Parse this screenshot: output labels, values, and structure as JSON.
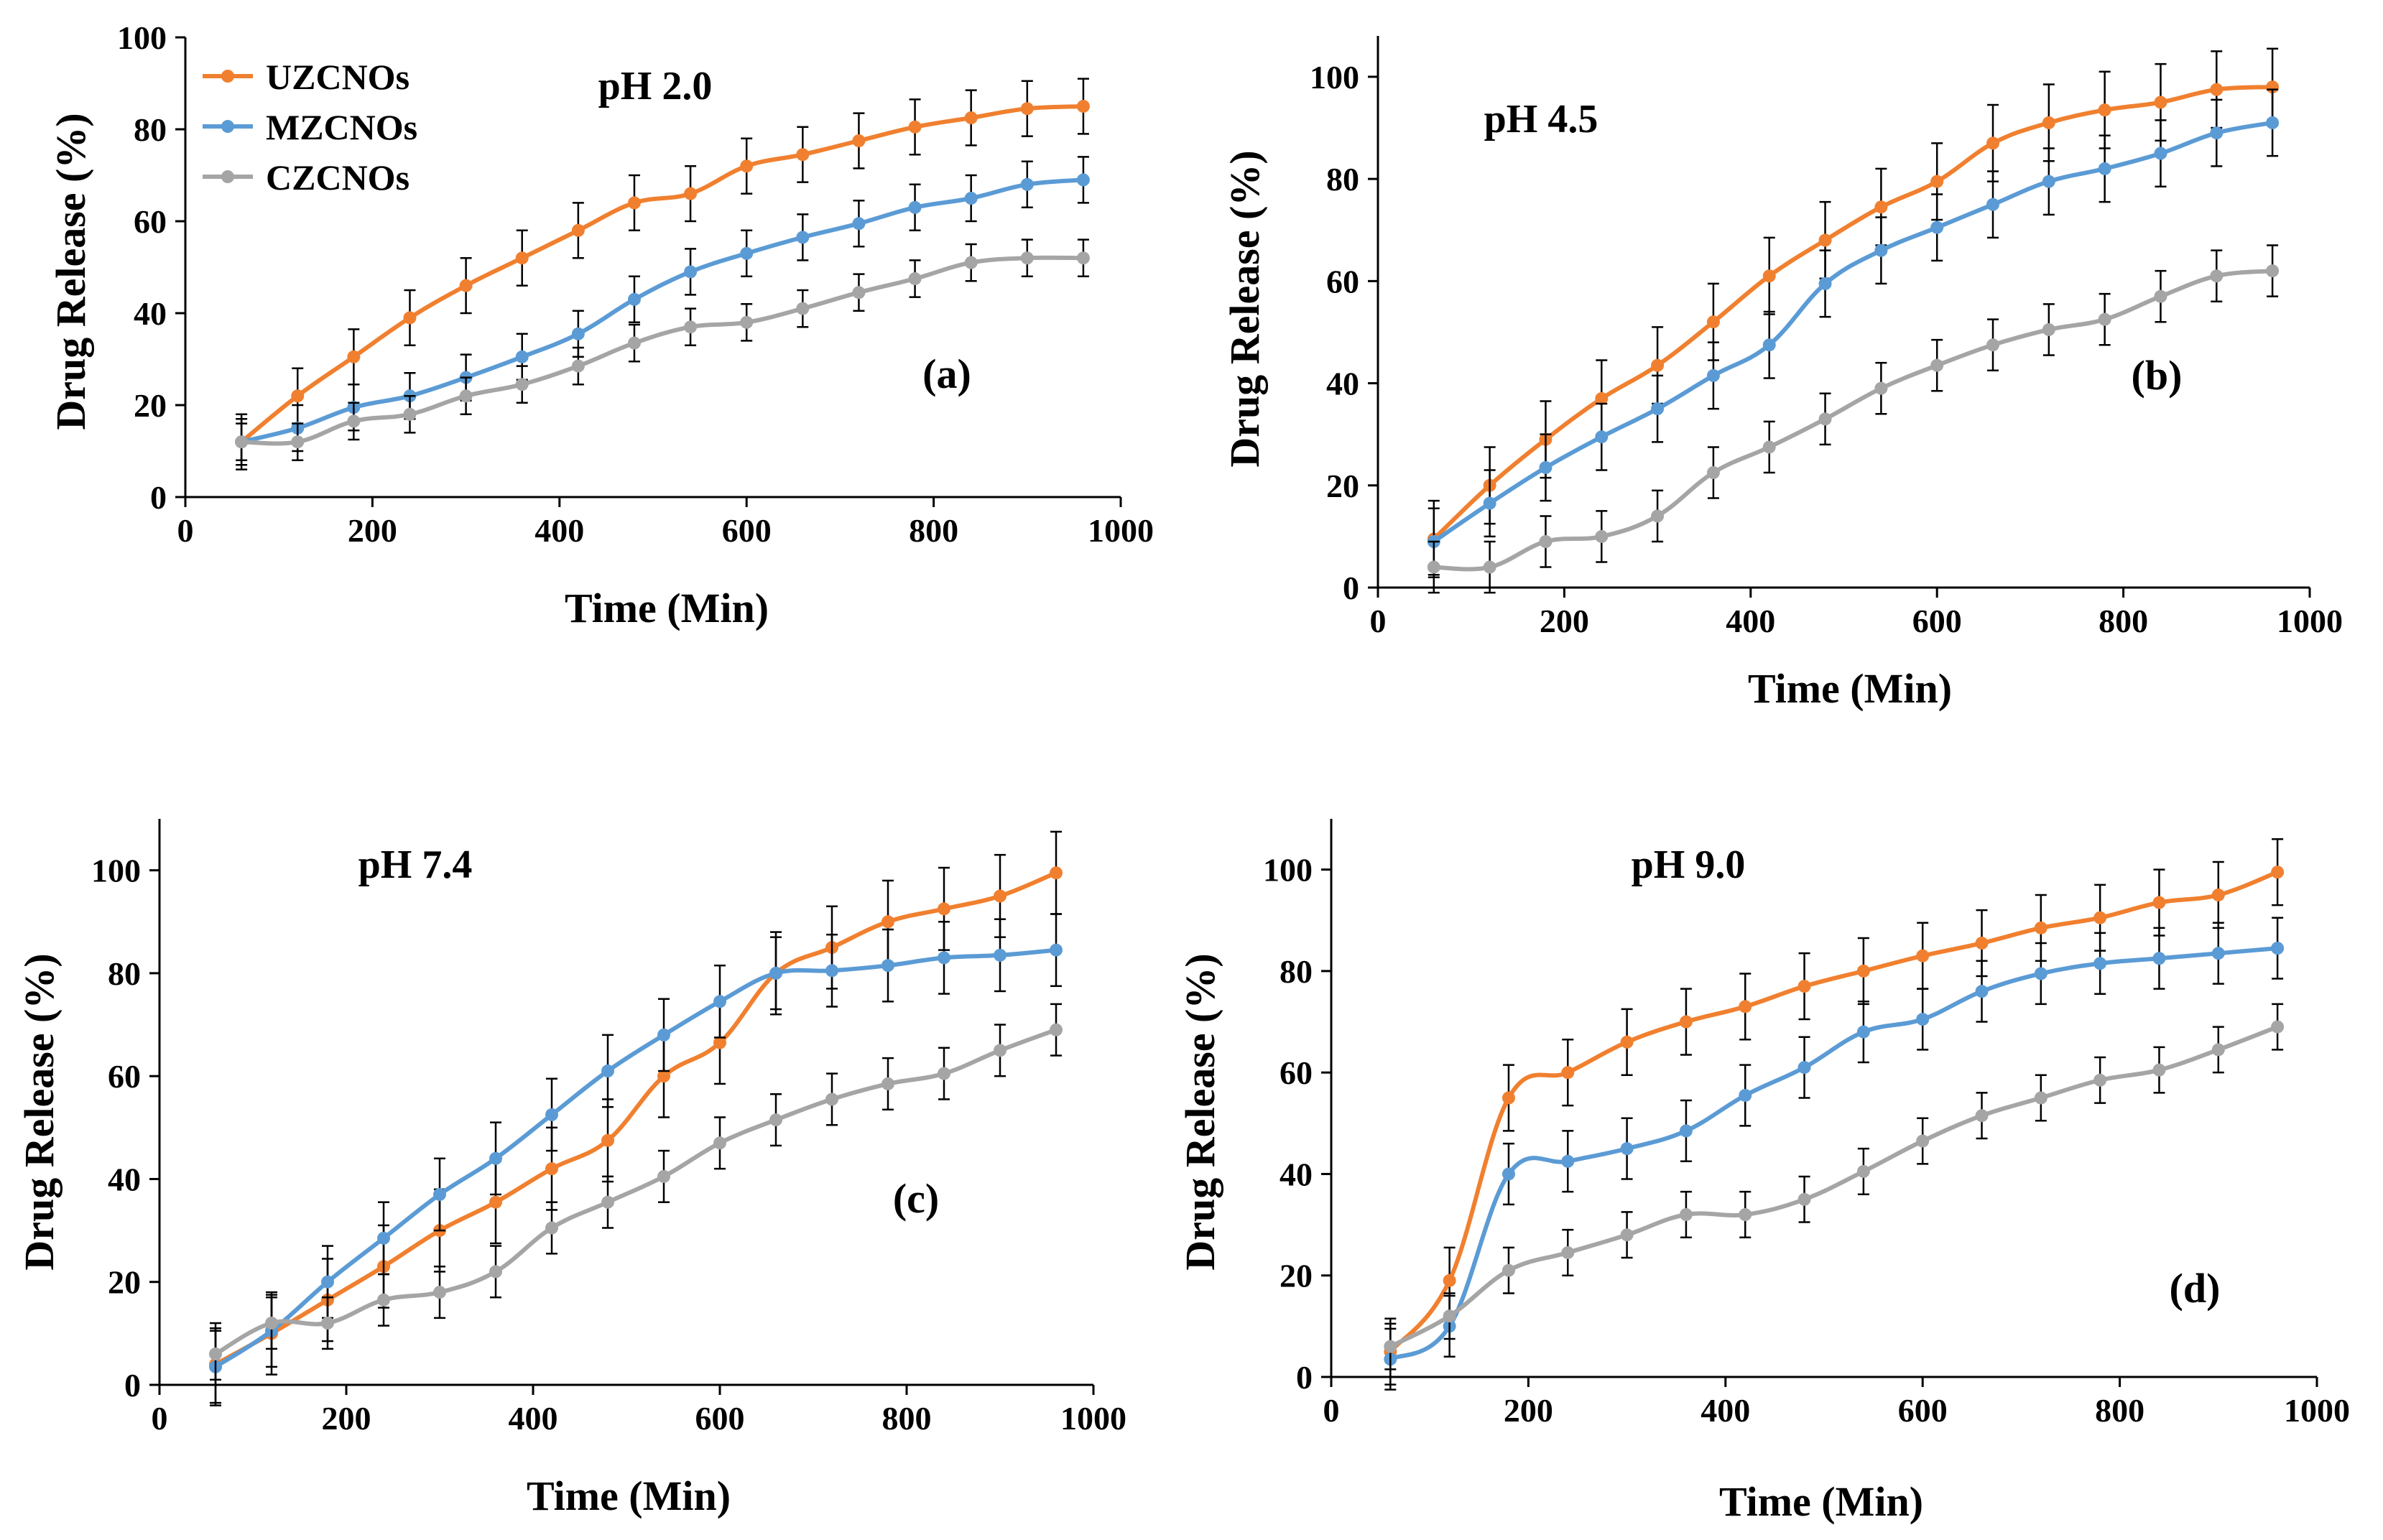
{
  "colors": {
    "UZCNOs": "#F0802F",
    "MZCNOs": "#5B9BD5",
    "CZCNOs": "#A5A5A5"
  },
  "legend": {
    "entries": [
      "UZCNOs",
      "MZCNOs",
      "CZCNOs"
    ],
    "placement": "top-left of panel (a)"
  },
  "chart_data": [
    {
      "type": "line",
      "panel_label": "(a)",
      "title": "pH 2.0",
      "xlabel": "Time (Min)",
      "ylabel": "Drug Release (%)",
      "xlim": [
        0,
        1000
      ],
      "ylim": [
        0,
        100
      ],
      "xticks": [
        0,
        200,
        400,
        600,
        800,
        1000
      ],
      "yticks": [
        0,
        20,
        40,
        60,
        80,
        100
      ],
      "x": [
        60,
        120,
        180,
        240,
        300,
        360,
        420,
        480,
        540,
        600,
        660,
        720,
        780,
        840,
        900,
        960
      ],
      "series": [
        {
          "name": "UZCNOs",
          "values": [
            12,
            22,
            30.5,
            39,
            46,
            52,
            58,
            64,
            66,
            72,
            74.5,
            77.5,
            80.5,
            82.5,
            84.5,
            85
          ],
          "errors": [
            6,
            6,
            6,
            6,
            6,
            6,
            6,
            6,
            6,
            6,
            6,
            6,
            6,
            6,
            6,
            6
          ]
        },
        {
          "name": "MZCNOs",
          "values": [
            12,
            15,
            19.5,
            22,
            26,
            30.5,
            35.5,
            43,
            49,
            53,
            56.5,
            59.5,
            63,
            65,
            68,
            69
          ],
          "errors": [
            5,
            5,
            5,
            5,
            5,
            5,
            5,
            5,
            5,
            5,
            5,
            5,
            5,
            5,
            5,
            5
          ]
        },
        {
          "name": "CZCNOs",
          "values": [
            12,
            12,
            16.5,
            18,
            22,
            24.5,
            28.5,
            33.5,
            37,
            38,
            41,
            44.5,
            47.5,
            51,
            52,
            52
          ],
          "errors": [
            4,
            4,
            4,
            4,
            4,
            4,
            4,
            4,
            4,
            4,
            4,
            4,
            4,
            4,
            4,
            4
          ]
        }
      ]
    },
    {
      "type": "line",
      "panel_label": "(b)",
      "title": "pH 4.5",
      "xlabel": "Time (Min)",
      "ylabel": "Drug Release (%)",
      "xlim": [
        0,
        1000
      ],
      "ylim": [
        0,
        108
      ],
      "xticks": [
        0,
        200,
        400,
        600,
        800,
        1000
      ],
      "yticks": [
        0,
        20,
        40,
        60,
        80,
        100
      ],
      "x": [
        60,
        120,
        180,
        240,
        300,
        360,
        420,
        480,
        540,
        600,
        660,
        720,
        780,
        840,
        900,
        960
      ],
      "series": [
        {
          "name": "UZCNOs",
          "values": [
            9.5,
            20,
            29,
            37,
            43.5,
            52,
            61,
            68,
            74.5,
            79.5,
            87,
            91,
            93.5,
            95,
            97.5,
            98
          ],
          "errors": [
            7.5,
            7.5,
            7.5,
            7.5,
            7.5,
            7.5,
            7.5,
            7.5,
            7.5,
            7.5,
            7.5,
            7.5,
            7.5,
            7.5,
            7.5,
            7.5
          ]
        },
        {
          "name": "MZCNOs",
          "values": [
            9,
            16.5,
            23.5,
            29.5,
            35,
            41.5,
            47.5,
            59.5,
            66,
            70.5,
            75,
            79.5,
            82,
            85,
            89,
            91
          ],
          "errors": [
            6.5,
            6.5,
            6.5,
            6.5,
            6.5,
            6.5,
            6.5,
            6.5,
            6.5,
            6.5,
            6.5,
            6.5,
            6.5,
            6.5,
            6.5,
            6.5
          ]
        },
        {
          "name": "CZCNOs",
          "values": [
            4,
            4,
            9,
            10,
            14,
            22.5,
            27.5,
            33,
            39,
            43.5,
            47.5,
            50.5,
            52.5,
            57,
            61,
            62
          ],
          "errors": [
            5,
            5,
            5,
            5,
            5,
            5,
            5,
            5,
            5,
            5,
            5,
            5,
            5,
            5,
            5,
            5
          ]
        }
      ]
    },
    {
      "type": "line",
      "panel_label": "(c)",
      "title": "pH 7.4",
      "xlabel": "Time (Min)",
      "ylabel": "Drug Release (%)",
      "xlim": [
        0,
        1000
      ],
      "ylim": [
        0,
        110
      ],
      "xticks": [
        0,
        200,
        400,
        600,
        800,
        1000
      ],
      "yticks": [
        0,
        20,
        40,
        60,
        80,
        100
      ],
      "x": [
        60,
        120,
        180,
        240,
        300,
        360,
        420,
        480,
        540,
        600,
        660,
        720,
        780,
        840,
        900,
        960
      ],
      "series": [
        {
          "name": "UZCNOs",
          "values": [
            4,
            10,
            16.5,
            23,
            30,
            35.5,
            42,
            47.5,
            60,
            66.5,
            80,
            85,
            90,
            92.5,
            95,
            99.5
          ],
          "errors": [
            8,
            8,
            8,
            8,
            8,
            8,
            8,
            8,
            8,
            8,
            8,
            8,
            8,
            8,
            8,
            8
          ]
        },
        {
          "name": "MZCNOs",
          "values": [
            3.5,
            10.5,
            20,
            28.5,
            37,
            44,
            52.5,
            61,
            68,
            74.5,
            80,
            80.5,
            81.5,
            83,
            83.5,
            84.5
          ],
          "errors": [
            7,
            7,
            7,
            7,
            7,
            7,
            7,
            7,
            7,
            7,
            7,
            7,
            7,
            7,
            7,
            7
          ]
        },
        {
          "name": "CZCNOs",
          "values": [
            6,
            12,
            12,
            16.5,
            18,
            22,
            30.5,
            35.5,
            40.5,
            47,
            51.5,
            55.5,
            58.5,
            60.5,
            65,
            69
          ],
          "errors": [
            5,
            5,
            5,
            5,
            5,
            5,
            5,
            5,
            5,
            5,
            5,
            5,
            5,
            5,
            5,
            5
          ]
        }
      ]
    },
    {
      "type": "line",
      "panel_label": "(d)",
      "title": "pH 9.0",
      "xlabel": "Time (Min)",
      "ylabel": "Drug Release (%)",
      "xlim": [
        0,
        1000
      ],
      "ylim": [
        0,
        110
      ],
      "xticks": [
        0,
        200,
        400,
        600,
        800,
        1000
      ],
      "yticks": [
        0,
        20,
        40,
        60,
        80,
        100
      ],
      "x": [
        60,
        120,
        180,
        240,
        300,
        360,
        420,
        480,
        540,
        600,
        660,
        720,
        780,
        840,
        900,
        960
      ],
      "series": [
        {
          "name": "UZCNOs",
          "values": [
            5,
            19,
            55,
            60,
            66,
            70,
            73,
            77,
            80,
            83,
            85.5,
            88.5,
            90.5,
            93.5,
            95,
            99.5
          ],
          "errors": [
            6.5,
            6.5,
            6.5,
            6.5,
            6.5,
            6.5,
            6.5,
            6.5,
            6.5,
            6.5,
            6.5,
            6.5,
            6.5,
            6.5,
            6.5,
            6.5
          ]
        },
        {
          "name": "MZCNOs",
          "values": [
            3.5,
            10,
            40,
            42.5,
            45,
            48.5,
            55.5,
            61,
            68,
            70.5,
            76,
            79.5,
            81.5,
            82.5,
            83.5,
            84.5
          ],
          "errors": [
            6,
            6,
            6,
            6,
            6,
            6,
            6,
            6,
            6,
            6,
            6,
            6,
            6,
            6,
            6,
            6
          ]
        },
        {
          "name": "CZCNOs",
          "values": [
            6,
            12,
            21,
            24.5,
            28,
            32,
            32,
            35,
            40.5,
            46.5,
            51.5,
            55,
            58.5,
            60.5,
            64.5,
            69
          ],
          "errors": [
            4.5,
            4.5,
            4.5,
            4.5,
            4.5,
            4.5,
            4.5,
            4.5,
            4.5,
            4.5,
            4.5,
            4.5,
            4.5,
            4.5,
            4.5,
            4.5
          ]
        }
      ]
    }
  ]
}
